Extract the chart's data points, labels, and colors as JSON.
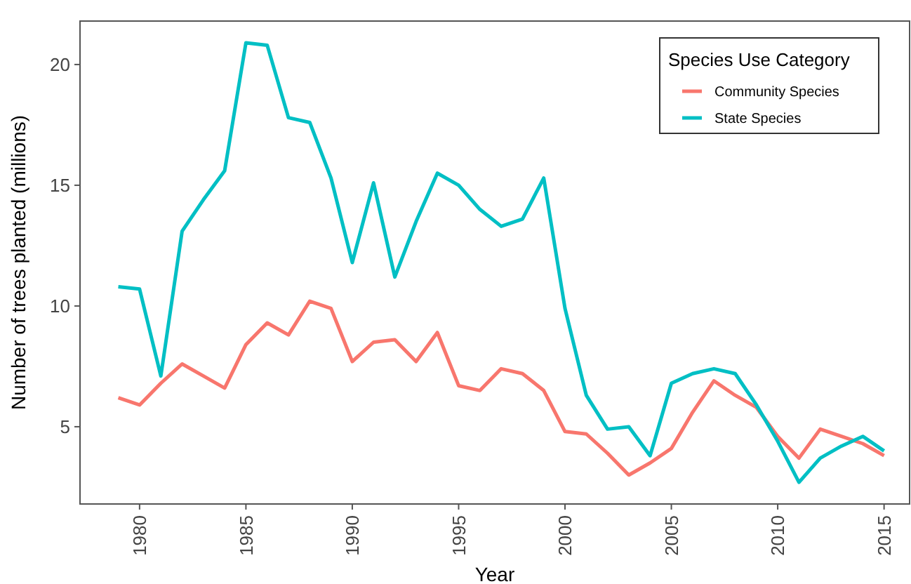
{
  "chart_data": {
    "type": "line",
    "xlabel": "Year",
    "ylabel": "Number of trees planted (millions)",
    "legend_title": "Species Use Category",
    "legend": "top right",
    "grid": false,
    "line_style": "solid",
    "marker": "none",
    "x": [
      1979,
      1980,
      1981,
      1982,
      1983,
      1984,
      1985,
      1986,
      1987,
      1988,
      1989,
      1990,
      1991,
      1992,
      1993,
      1994,
      1995,
      1996,
      1997,
      1998,
      1999,
      2000,
      2001,
      2002,
      2003,
      2004,
      2005,
      2006,
      2007,
      2008,
      2009,
      2010,
      2011,
      2012,
      2013,
      2014,
      2015
    ],
    "xlim": [
      1977.2,
      2016.2
    ],
    "xticks": [
      1980,
      1985,
      1990,
      1995,
      2000,
      2005,
      2010,
      2015
    ],
    "ylim": [
      1.8,
      21.8
    ],
    "yticks": [
      5,
      10,
      15,
      20
    ],
    "series": [
      {
        "name": "Community Species",
        "color": "#f8766d",
        "values": [
          6.2,
          5.9,
          6.8,
          7.6,
          7.1,
          6.6,
          8.4,
          9.3,
          8.8,
          10.2,
          9.9,
          7.7,
          8.5,
          8.6,
          7.7,
          8.9,
          6.7,
          6.5,
          7.4,
          7.2,
          6.5,
          4.8,
          4.7,
          3.9,
          3.0,
          3.5,
          4.1,
          5.6,
          6.9,
          6.3,
          5.8,
          4.6,
          3.7,
          4.9,
          4.6,
          4.3,
          3.8
        ]
      },
      {
        "name": "State Species",
        "color": "#00bfc4",
        "values": [
          10.8,
          10.7,
          7.1,
          13.1,
          14.4,
          15.6,
          20.9,
          20.8,
          17.8,
          17.6,
          15.3,
          11.8,
          15.1,
          11.2,
          13.5,
          15.5,
          15.0,
          14.0,
          13.3,
          13.6,
          15.3,
          9.9,
          6.3,
          4.9,
          5.0,
          3.8,
          6.8,
          7.2,
          7.4,
          7.2,
          5.9,
          4.4,
          2.7,
          3.7,
          4.2,
          4.6,
          4.0
        ]
      }
    ]
  }
}
